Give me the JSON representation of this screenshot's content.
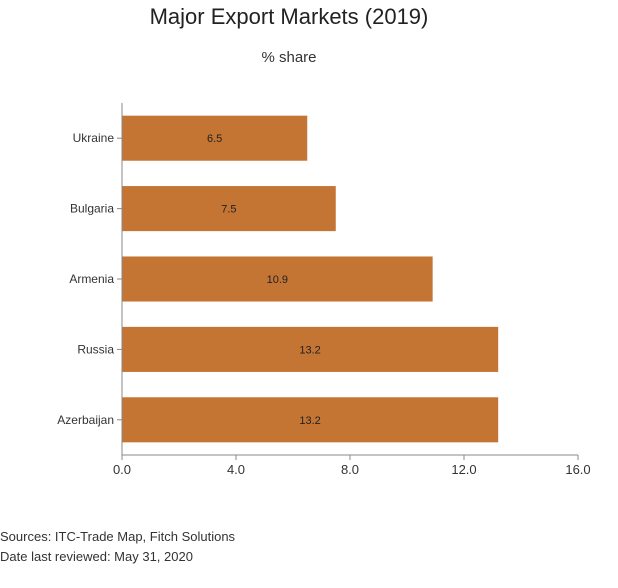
{
  "chart_data": {
    "type": "bar",
    "orientation": "horizontal",
    "title": "Major Export Markets (2019)",
    "subtitle": "% share",
    "categories": [
      "Ukraine",
      "Bulgaria",
      "Armenia",
      "Russia",
      "Azerbaijan"
    ],
    "values": [
      6.5,
      7.5,
      10.9,
      13.2,
      13.2
    ],
    "data_labels": [
      "6.5",
      "7.5",
      "10.9",
      "13.2",
      "13.2"
    ],
    "xlim": [
      0,
      16
    ],
    "x_ticks": [
      "0.0",
      "4.0",
      "8.0",
      "12.0",
      "16.0"
    ],
    "x_tick_values": [
      0,
      4,
      8,
      12,
      16
    ],
    "bar_color": "#c47433",
    "grid": false
  },
  "footer": {
    "sources": "Sources: ITC-Trade Map, Fitch Solutions",
    "reviewed": "Date last reviewed: May 31, 2020"
  }
}
